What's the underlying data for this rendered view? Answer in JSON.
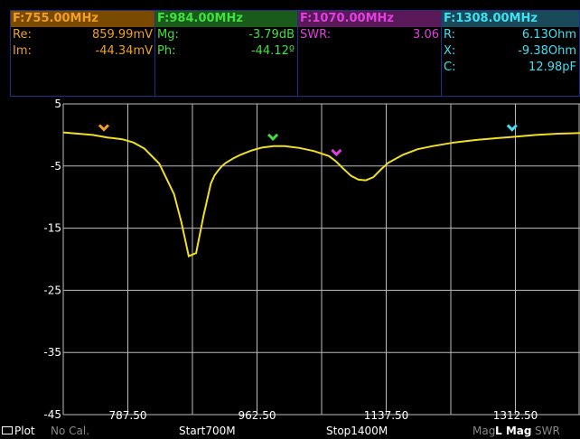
{
  "markers": [
    {
      "freq": "F:755.00MHz",
      "color": "#f0a020",
      "head_bg": "#7a4a00",
      "rows": [
        {
          "label": "Re:",
          "value": "859.99mV"
        },
        {
          "label": "Im:",
          "value": "-44.34mV"
        }
      ]
    },
    {
      "freq": "F:984.00MHz",
      "color": "#40e040",
      "head_bg": "#1a5a1a",
      "rows": [
        {
          "label": "Mg:",
          "value": "-3.79dB"
        },
        {
          "label": "Ph:",
          "value": "-44.12º"
        }
      ]
    },
    {
      "freq": "F:1070.00MHz",
      "color": "#e040e0",
      "head_bg": "#5a1a5a",
      "rows": [
        {
          "label": "SWR:",
          "value": "3.06"
        }
      ]
    },
    {
      "freq": "F:1308.00MHz",
      "color": "#40e0f0",
      "head_bg": "#1a4a5a",
      "rows": [
        {
          "label": "R:",
          "value": "6.13Ohm"
        },
        {
          "label": "X:",
          "value": "-9.38Ohm"
        },
        {
          "label": "C:",
          "value": "12.98pF"
        }
      ]
    }
  ],
  "chart_data": {
    "type": "line",
    "y_tick_labels": [
      "5",
      "-5",
      "-15",
      "-25",
      "-35",
      "-45"
    ],
    "y_ticks": [
      5,
      -5,
      -15,
      -25,
      -35,
      -45
    ],
    "x_tick_labels": [
      "787.50",
      "962.50",
      "1137.50",
      "1312.50"
    ],
    "x_ticks": [
      787.5,
      962.5,
      1137.5,
      1312.5
    ],
    "xlim": [
      700,
      1400
    ],
    "ylim": [
      -45,
      5
    ],
    "series": [
      {
        "color": "#f0e020",
        "x": [
          700,
          720,
          740,
          760,
          780,
          795,
          810,
          830,
          850,
          860,
          870,
          880,
          890,
          900,
          905,
          910,
          915,
          920,
          930,
          940,
          955,
          970,
          985,
          1000,
          1020,
          1040,
          1060,
          1070,
          1080,
          1090,
          1100,
          1110,
          1120,
          1130,
          1140,
          1160,
          1180,
          1200,
          1230,
          1260,
          1290,
          1310,
          1340,
          1370,
          1400
        ],
        "y": [
          0.4,
          0.2,
          0.0,
          -0.4,
          -0.7,
          -1.2,
          -2.2,
          -4.6,
          -9.5,
          -14.0,
          -19.5,
          -19.0,
          -13.0,
          -7.8,
          -6.5,
          -5.7,
          -5.0,
          -4.5,
          -3.8,
          -3.2,
          -2.5,
          -2.0,
          -1.8,
          -1.8,
          -2.1,
          -2.6,
          -3.4,
          -4.3,
          -5.5,
          -6.6,
          -7.2,
          -7.3,
          -6.8,
          -5.6,
          -4.5,
          -3.2,
          -2.3,
          -1.8,
          -1.2,
          -0.8,
          -0.5,
          -0.3,
          0.0,
          0.2,
          0.3
        ]
      }
    ],
    "marker_x": [
      {
        "x": 755,
        "color": "#f0a020"
      },
      {
        "x": 984,
        "color": "#40e040"
      },
      {
        "x": 1070,
        "color": "#e040e0"
      },
      {
        "x": 1308,
        "color": "#40e0f0"
      }
    ]
  },
  "bottom": {
    "plot": "Plot",
    "nocal": "No Cal.",
    "start": "Start700M",
    "stop": "Stop1400M",
    "mag": "Mag",
    "lmag": "L Mag",
    "swr": "SWR"
  }
}
